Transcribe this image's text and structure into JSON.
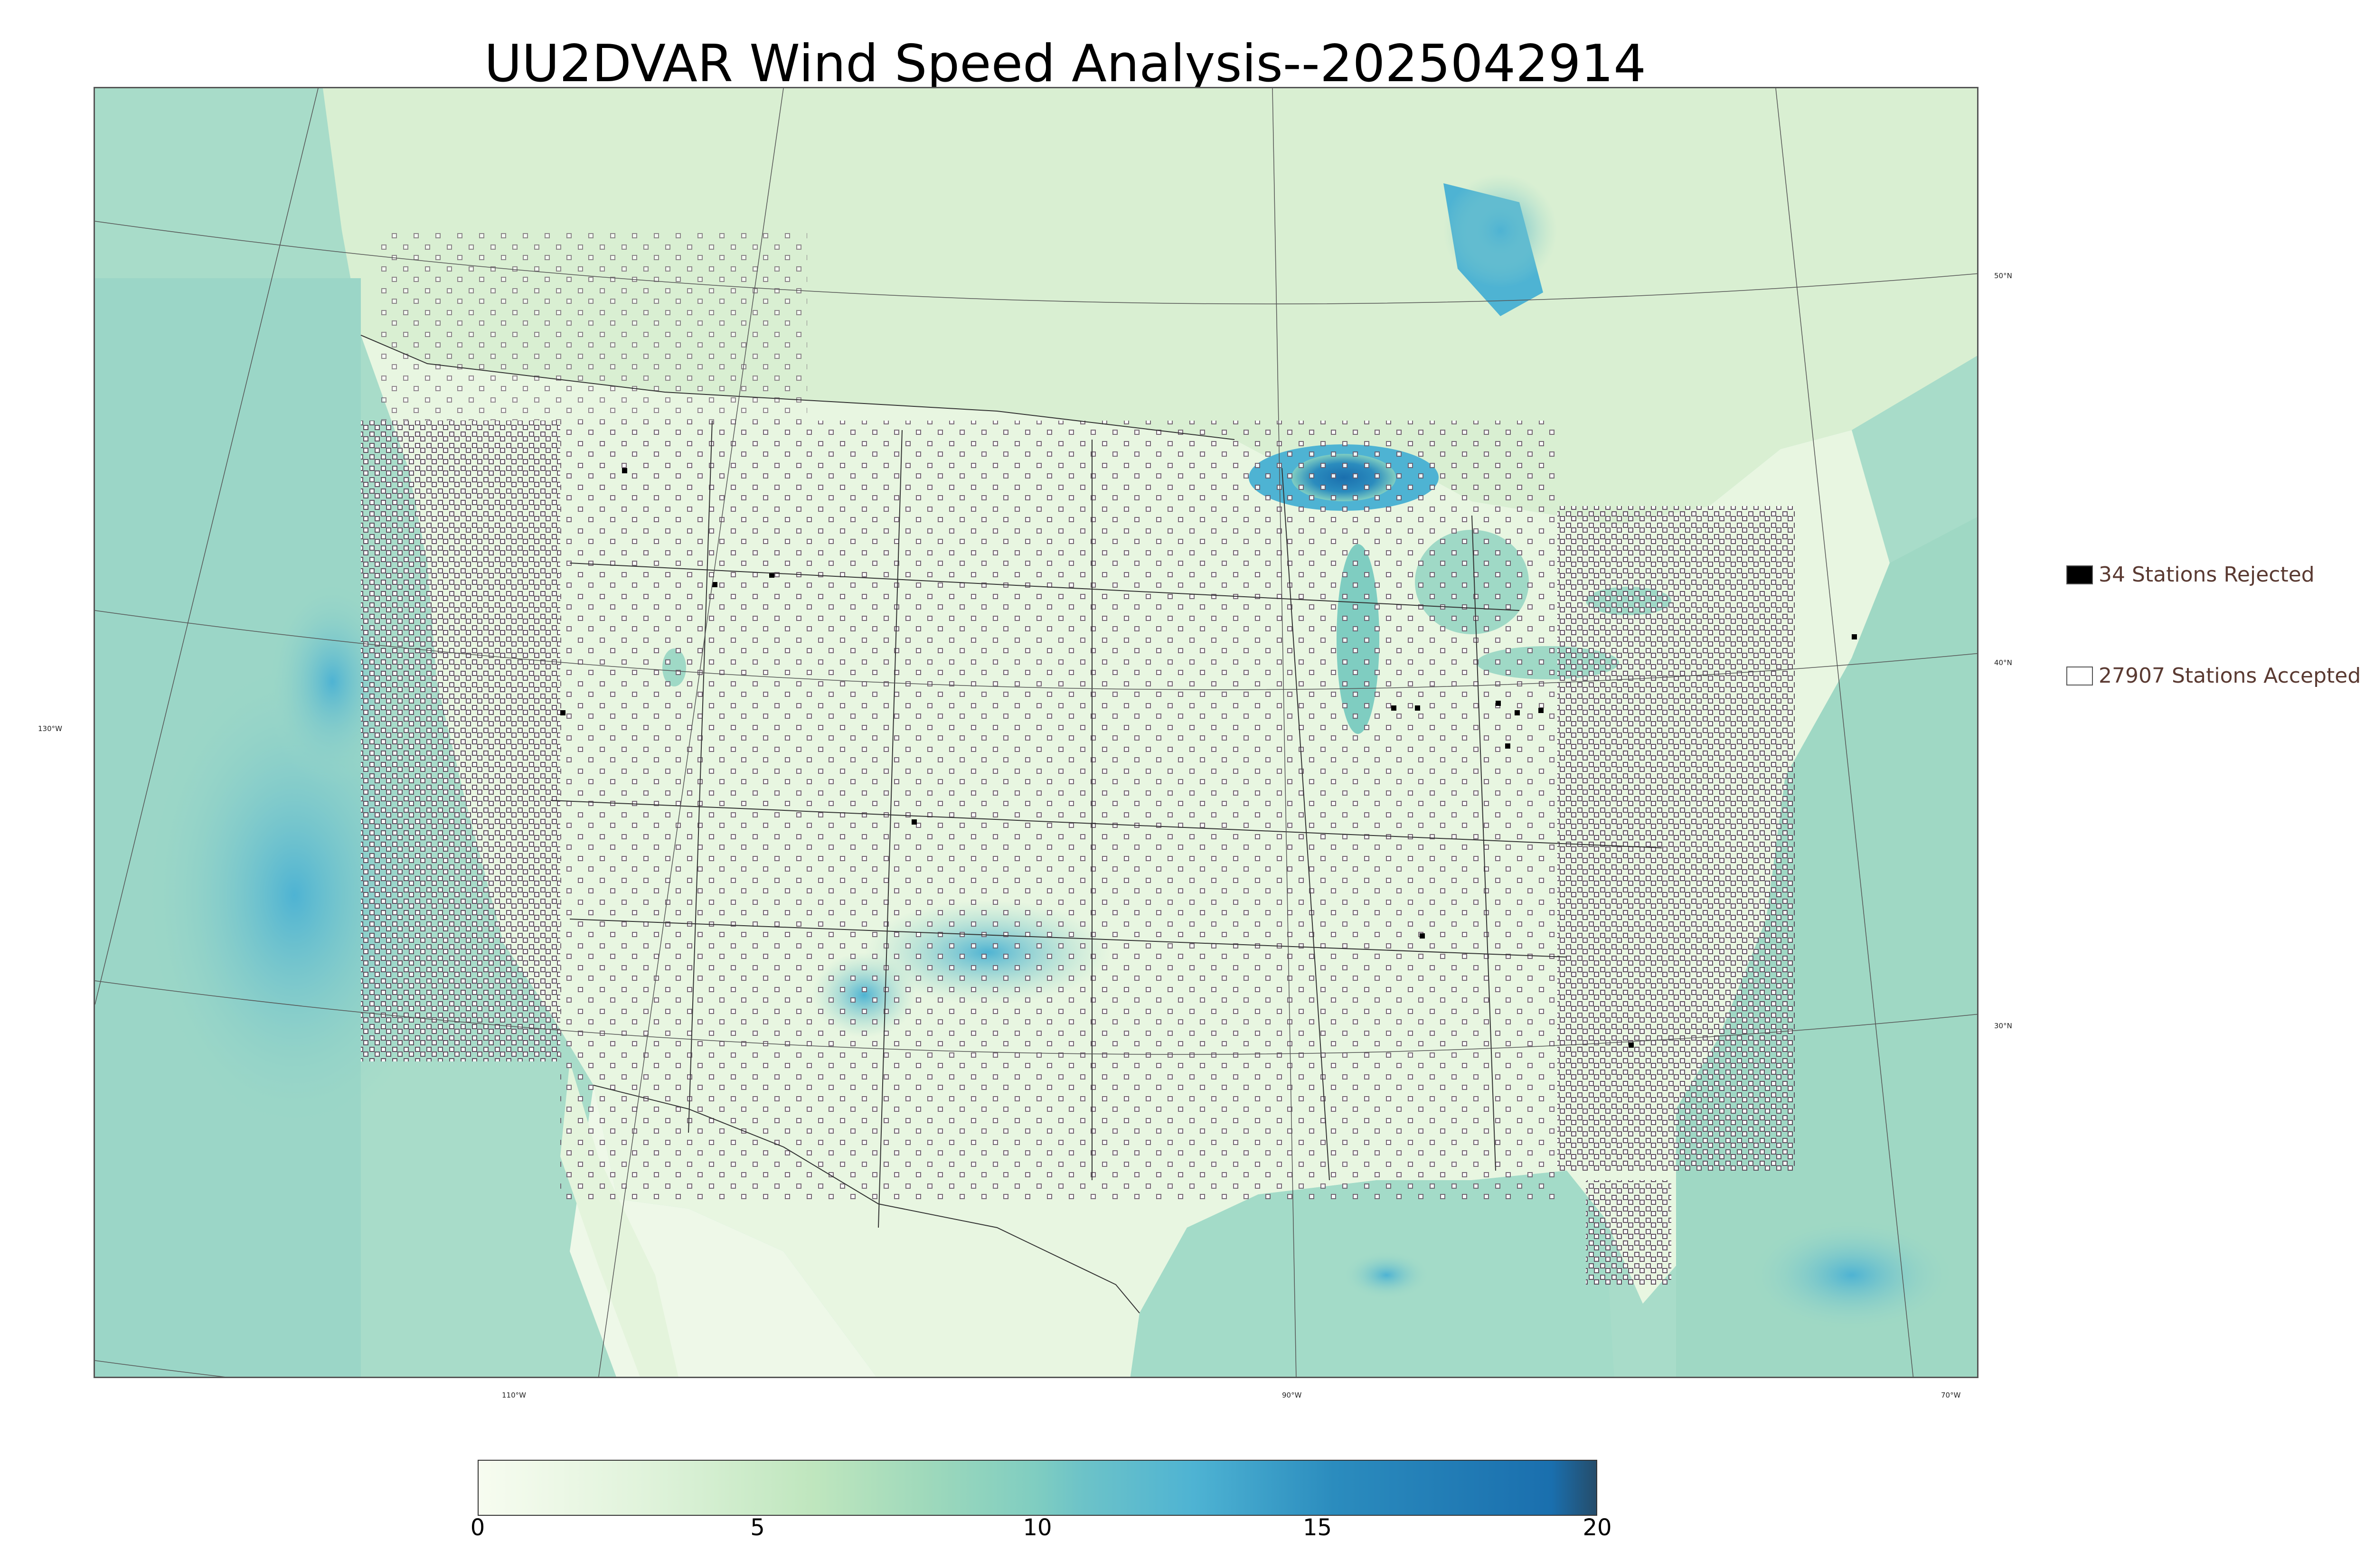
{
  "title": "UU2DVAR Wind Speed Analysis--2025042914",
  "legend": {
    "rejected": "34 Stations Rejected",
    "accepted": "27907 Stations Accepted"
  },
  "lon_labels": [
    "130°W",
    "110°W",
    "90°W",
    "70°W"
  ],
  "lat_labels": [
    "50°N",
    "40°N",
    "30°N"
  ],
  "colorbar": {
    "ticks": [
      "0",
      "5",
      "10",
      "15",
      "20"
    ],
    "range": [
      0,
      20
    ],
    "stops": [
      {
        "v": 0,
        "color": "#f7fcf0"
      },
      {
        "v": 3,
        "color": "#e0f3db"
      },
      {
        "v": 6,
        "color": "#bfe6be"
      },
      {
        "v": 8,
        "color": "#9fd9bb"
      },
      {
        "v": 10,
        "color": "#7fcdc1"
      },
      {
        "v": 10.8,
        "color": "#6dc3c8"
      },
      {
        "v": 12.8,
        "color": "#4eb3d3"
      },
      {
        "v": 15.3,
        "color": "#2b8cbe"
      },
      {
        "v": 19.2,
        "color": "#1a6fae"
      },
      {
        "v": 20,
        "color": "#254d6b"
      }
    ]
  },
  "colors": {
    "ocean": "#9fd9c6",
    "land": "#e6f5de",
    "high_wind": "#4eb3d3",
    "station_rejected": "#000000",
    "station_accepted": "#ffffff",
    "boundary": "#333333"
  }
}
